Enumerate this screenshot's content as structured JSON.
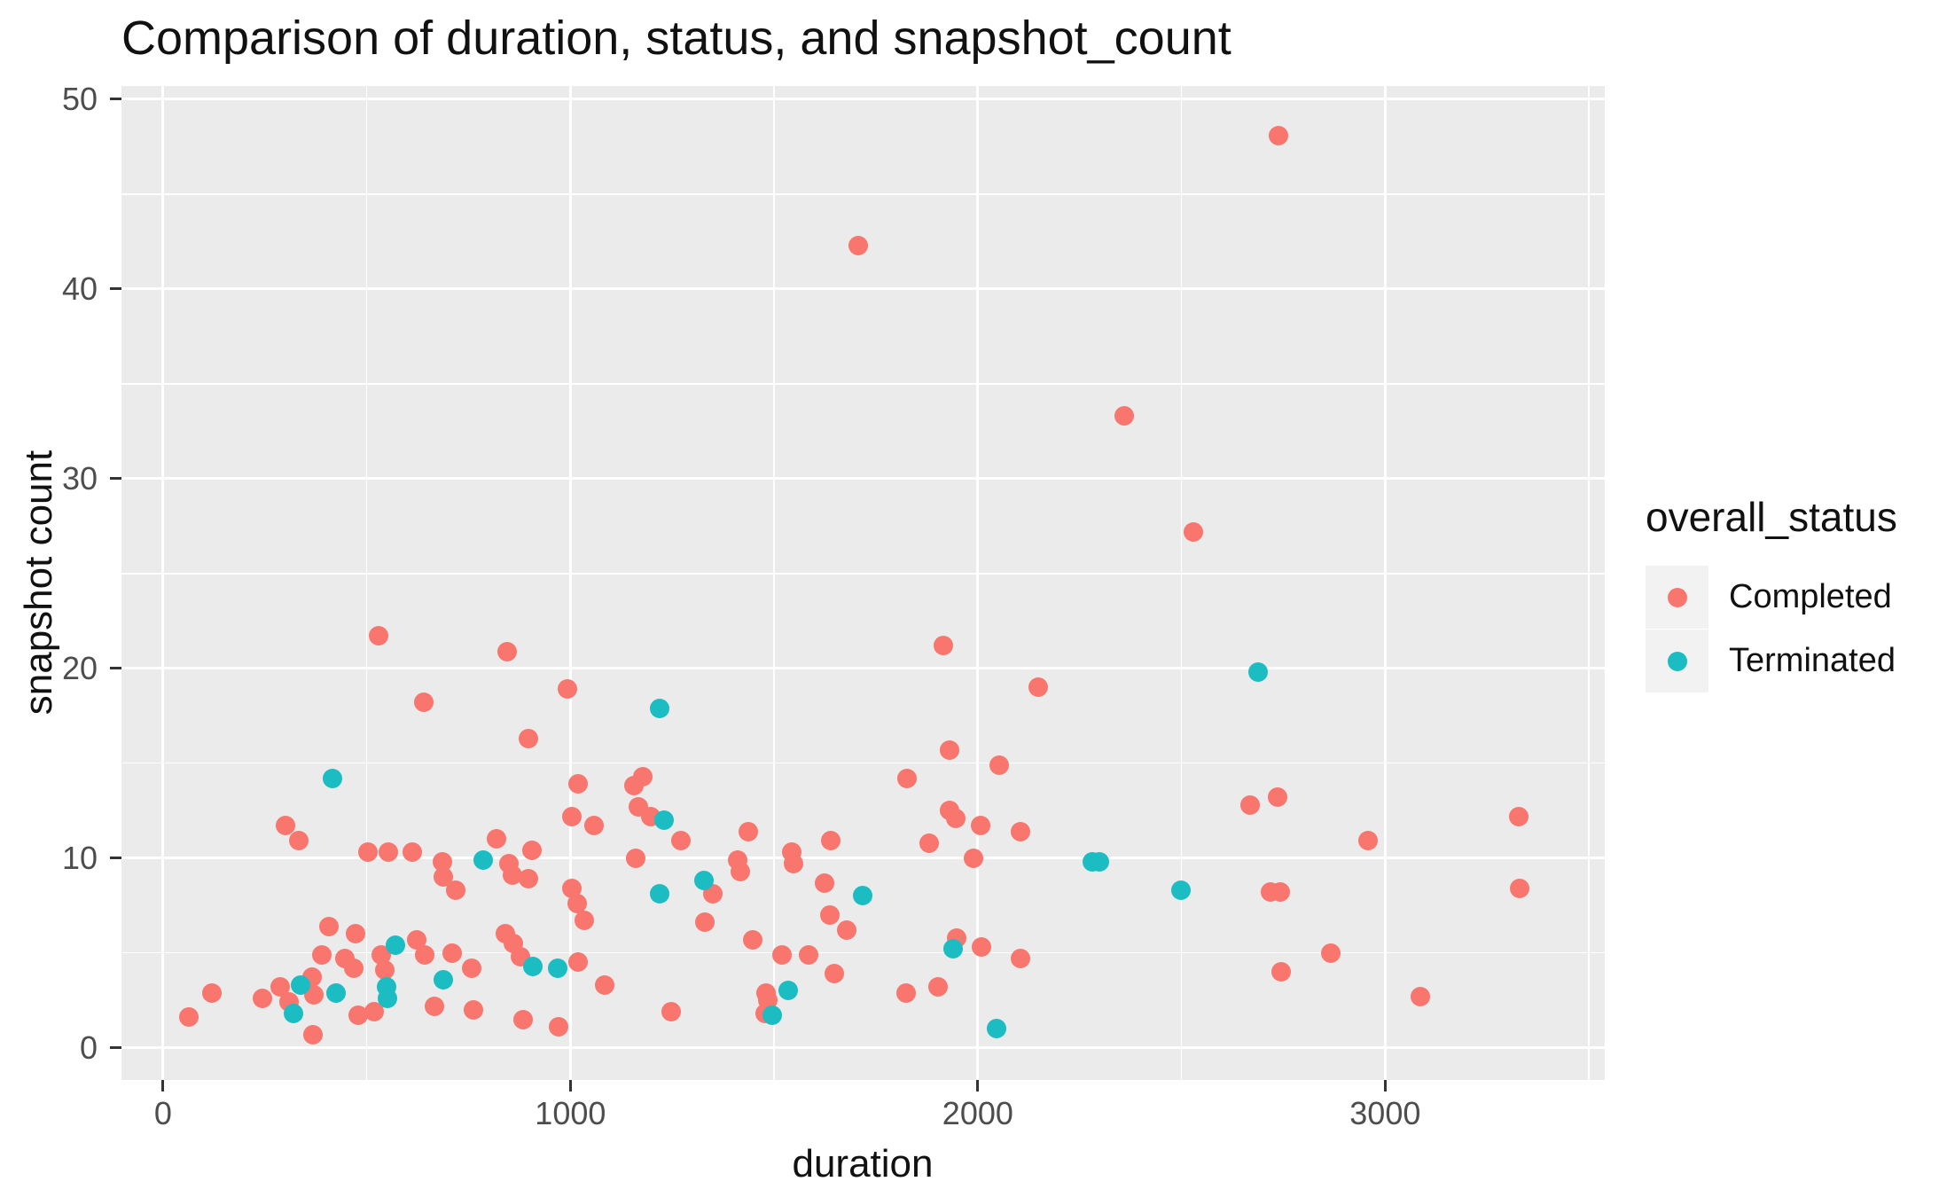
{
  "title": "Comparison of duration, status, and snapshot_count",
  "colors": {
    "panel_background": "#EBEBEB",
    "gridline": "#FFFFFF",
    "tick_text": "#4D4D4D",
    "tick_mark": "#333333",
    "completed": "#F8766D",
    "terminated": "#1CBDC2",
    "legend_key_background": "#F2F2F2"
  },
  "legend": {
    "title": "overall_status",
    "items": [
      {
        "label": "Completed",
        "color": "#F8766D"
      },
      {
        "label": "Terminated",
        "color": "#1CBDC2"
      }
    ]
  },
  "chart_data": {
    "type": "scatter",
    "title": "Comparison of duration, status, and snapshot_count",
    "xlabel": "duration",
    "ylabel": "snapshot count",
    "xlim": [
      -102,
      3539
    ],
    "ylim": [
      -1.7,
      50.7
    ],
    "x_ticks": [
      0,
      1000,
      2000,
      3000
    ],
    "x_tick_labels": [
      "0",
      "1000",
      "2000",
      "3000"
    ],
    "x_minor_ticks": [
      500,
      1500,
      2500,
      3500
    ],
    "y_ticks": [
      0,
      10,
      20,
      30,
      40,
      50
    ],
    "y_tick_labels": [
      "0",
      "10",
      "20",
      "30",
      "40",
      "50"
    ],
    "y_minor_ticks": [
      5,
      15,
      25,
      35,
      45
    ],
    "grid": true,
    "legend_position": "right",
    "series": [
      {
        "name": "Completed",
        "color": "#F8766D",
        "points": [
          [
            63,
            1.6
          ],
          [
            120,
            2.9
          ],
          [
            245,
            2.6
          ],
          [
            287,
            3.2
          ],
          [
            300,
            11.7
          ],
          [
            309,
            2.4
          ],
          [
            334,
            10.9
          ],
          [
            365,
            3.7
          ],
          [
            370,
            2.8
          ],
          [
            367,
            0.7
          ],
          [
            390,
            4.9
          ],
          [
            407,
            6.4
          ],
          [
            447,
            4.7
          ],
          [
            468,
            4.2
          ],
          [
            472,
            6.0
          ],
          [
            478,
            1.7
          ],
          [
            502,
            10.3
          ],
          [
            519,
            1.9
          ],
          [
            529,
            21.7
          ],
          [
            536,
            4.9
          ],
          [
            545,
            4.1
          ],
          [
            554,
            10.3
          ],
          [
            611,
            10.3
          ],
          [
            623,
            5.7
          ],
          [
            640,
            18.2
          ],
          [
            643,
            4.9
          ],
          [
            666,
            2.2
          ],
          [
            686,
            9.8
          ],
          [
            688,
            9.0
          ],
          [
            710,
            5.0
          ],
          [
            719,
            8.3
          ],
          [
            757,
            4.2
          ],
          [
            763,
            2.0
          ],
          [
            818,
            11.0
          ],
          [
            840,
            6.0
          ],
          [
            845,
            20.9
          ],
          [
            850,
            9.7
          ],
          [
            858,
            9.1
          ],
          [
            860,
            5.5
          ],
          [
            878,
            4.8
          ],
          [
            884,
            1.5
          ],
          [
            898,
            16.3
          ],
          [
            898,
            8.9
          ],
          [
            905,
            10.4
          ],
          [
            971,
            1.1
          ],
          [
            992,
            18.9
          ],
          [
            1004,
            12.2
          ],
          [
            1004,
            8.4
          ],
          [
            1016,
            7.6
          ],
          [
            1019,
            4.5
          ],
          [
            1019,
            13.9
          ],
          [
            1034,
            6.7
          ],
          [
            1058,
            11.7
          ],
          [
            1085,
            3.3
          ],
          [
            1155,
            13.8
          ],
          [
            1161,
            10.0
          ],
          [
            1166,
            12.7
          ],
          [
            1177,
            14.3
          ],
          [
            1197,
            12.2
          ],
          [
            1247,
            1.9
          ],
          [
            1271,
            10.9
          ],
          [
            1329,
            6.6
          ],
          [
            1349,
            8.1
          ],
          [
            1411,
            9.9
          ],
          [
            1417,
            9.3
          ],
          [
            1437,
            11.4
          ],
          [
            1447,
            5.7
          ],
          [
            1478,
            1.8
          ],
          [
            1481,
            2.9
          ],
          [
            1485,
            2.5
          ],
          [
            1519,
            4.9
          ],
          [
            1544,
            10.3
          ],
          [
            1548,
            9.7
          ],
          [
            1585,
            4.9
          ],
          [
            1624,
            8.7
          ],
          [
            1636,
            7.0
          ],
          [
            1638,
            10.9
          ],
          [
            1647,
            3.9
          ],
          [
            1678,
            6.2
          ],
          [
            1707,
            42.3
          ],
          [
            1824,
            2.9
          ],
          [
            1827,
            14.2
          ],
          [
            1880,
            10.8
          ],
          [
            1903,
            3.2
          ],
          [
            1916,
            21.2
          ],
          [
            1931,
            12.5
          ],
          [
            1931,
            15.7
          ],
          [
            1945,
            12.1
          ],
          [
            1949,
            5.8
          ],
          [
            1989,
            10.0
          ],
          [
            2007,
            11.7
          ],
          [
            2009,
            5.3
          ],
          [
            2052,
            14.9
          ],
          [
            2104,
            11.4
          ],
          [
            2104,
            4.7
          ],
          [
            2148,
            19.0
          ],
          [
            2360,
            33.3
          ],
          [
            2529,
            27.2
          ],
          [
            2669,
            12.8
          ],
          [
            2719,
            8.2
          ],
          [
            2736,
            13.2
          ],
          [
            2739,
            48.1
          ],
          [
            2742,
            8.2
          ],
          [
            2744,
            4.0
          ],
          [
            2867,
            5.0
          ],
          [
            2958,
            10.9
          ],
          [
            3087,
            2.7
          ],
          [
            3327,
            12.2
          ],
          [
            3329,
            8.4
          ]
        ]
      },
      {
        "name": "Terminated",
        "color": "#1CBDC2",
        "points": [
          [
            320,
            1.8
          ],
          [
            337,
            3.3
          ],
          [
            417,
            14.2
          ],
          [
            425,
            2.9
          ],
          [
            549,
            3.2
          ],
          [
            551,
            2.6
          ],
          [
            570,
            5.4
          ],
          [
            687,
            3.6
          ],
          [
            786,
            9.9
          ],
          [
            908,
            4.3
          ],
          [
            968,
            4.2
          ],
          [
            1218,
            17.9
          ],
          [
            1218,
            8.1
          ],
          [
            1229,
            12.0
          ],
          [
            1327,
            8.8
          ],
          [
            1495,
            1.7
          ],
          [
            1535,
            3.0
          ],
          [
            1718,
            8.0
          ],
          [
            1939,
            5.2
          ],
          [
            2045,
            1.0
          ],
          [
            2280,
            9.8
          ],
          [
            2298,
            9.8
          ],
          [
            2498,
            8.3
          ],
          [
            2687,
            19.8
          ]
        ]
      }
    ]
  }
}
